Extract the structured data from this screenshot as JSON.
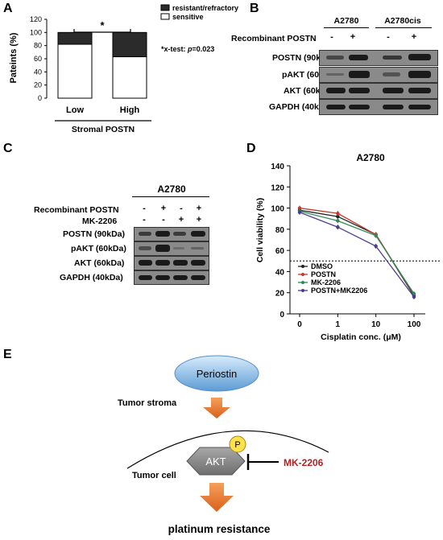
{
  "panels": {
    "A": "A",
    "B": "B",
    "C": "C",
    "D": "D",
    "E": "E"
  },
  "panelA": {
    "ylabel": "Pateints (%)",
    "yticks": [
      "0",
      "20",
      "40",
      "60",
      "80",
      "100",
      "120"
    ],
    "categories": [
      "Low",
      "High"
    ],
    "xgroup": "Stromal POSTN",
    "legend": [
      "resistant/refractory",
      "sensitive"
    ],
    "significance": "*",
    "stat_prefix": "*x-test: ",
    "stat_p": "p",
    "stat_value": "=0.023",
    "colors": {
      "resistant": "#2b2b2b",
      "sensitive": "#ffffff"
    }
  },
  "panelB": {
    "cell_lines": [
      "A2780",
      "A2780cis"
    ],
    "treatment_label": "Recombinant POSTN",
    "treatment_signs": [
      "-",
      "+",
      "-",
      "+"
    ],
    "rows": [
      "POSTN (90kDa)",
      "pAKT (60kDa)",
      "AKT (60kDa)",
      "GAPDH (40kDa)"
    ]
  },
  "panelC": {
    "cell_line": "A2780",
    "treatments": [
      {
        "label": "Recombinant POSTN",
        "signs": [
          "-",
          "+",
          "-",
          "+"
        ]
      },
      {
        "label": "MK-2206",
        "signs": [
          "-",
          "-",
          "+",
          "+"
        ]
      }
    ],
    "rows": [
      "POSTN (90kDa)",
      "pAKT (60kDa)",
      "AKT (60kDa)",
      "GAPDH (40kDa)"
    ]
  },
  "chart_data": {
    "type": "line",
    "title": "A2780",
    "xlabel": "Cisplatin conc. (μM)",
    "ylabel": "Cell viability (%)",
    "x": [
      "0",
      "1",
      "10",
      "100"
    ],
    "ylim": [
      0,
      140
    ],
    "yticks": [
      0,
      20,
      40,
      60,
      80,
      100,
      120,
      140
    ],
    "reference_line": 50,
    "series": [
      {
        "name": "DMSO",
        "values": [
          98,
          92,
          75,
          17
        ],
        "color": "#222222"
      },
      {
        "name": "POSTN",
        "values": [
          100,
          95,
          75,
          18
        ],
        "color": "#c0392b"
      },
      {
        "name": "MK-2206",
        "values": [
          97,
          88,
          74,
          19
        ],
        "color": "#2e8b57"
      },
      {
        "name": "POSTN+MK2206",
        "values": [
          96,
          82,
          64,
          16
        ],
        "color": "#4a3d8f"
      }
    ]
  },
  "panelE": {
    "periostin": "Periostin",
    "tumor_stroma": "Tumor stroma",
    "tumor_cell": "Tumor cell",
    "akt": "AKT",
    "phospho": "P",
    "inhibitor": "MK-2206",
    "outcome": "platinum resistance",
    "colors": {
      "inhibitor": "#b22222",
      "arrow": "#e8742a",
      "ellipse": "#6fa8dc",
      "phospho": "#ffe14d",
      "akt": "#8c8c8c"
    }
  }
}
